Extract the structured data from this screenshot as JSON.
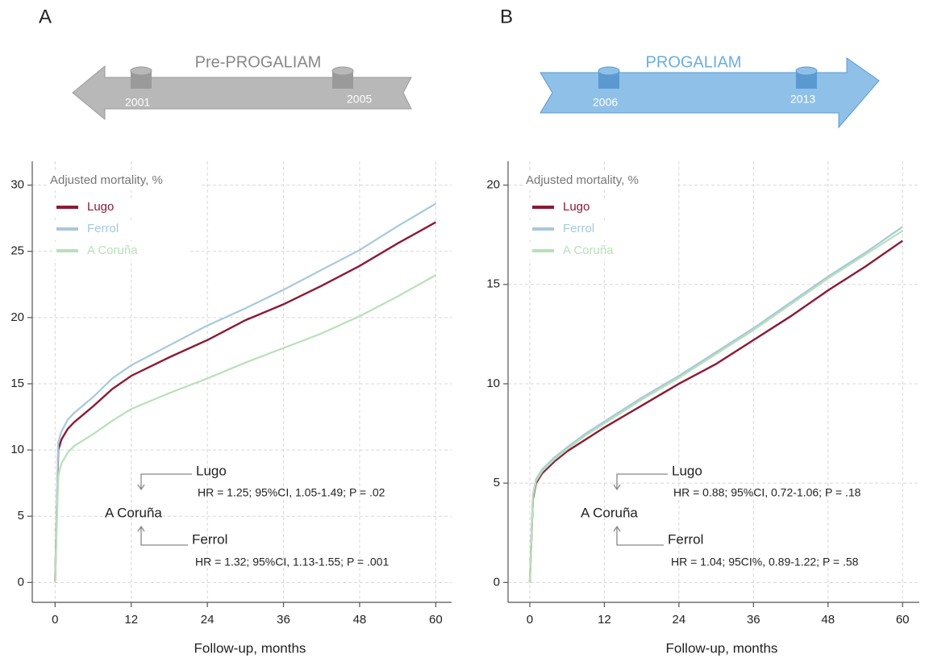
{
  "chart_data": [
    {
      "type": "line",
      "label": "A",
      "banner": {
        "title": "Pre-PROGALIAM",
        "start": "2001",
        "end": "2005"
      },
      "ylabel": "Adjusted mortality, %",
      "xlabel": "Follow-up, months",
      "x": [
        0,
        0.5,
        1,
        2,
        3,
        4,
        6,
        9,
        12,
        18,
        24,
        30,
        36,
        42,
        48,
        54,
        60
      ],
      "series": [
        {
          "name": "Lugo",
          "color": "#8b1a35",
          "values": [
            0,
            10.0,
            10.8,
            11.6,
            12.1,
            12.5,
            13.3,
            14.6,
            15.6,
            17.0,
            18.3,
            19.8,
            21.0,
            22.4,
            23.9,
            25.6,
            27.2
          ]
        },
        {
          "name": "Ferrol",
          "color": "#a8c8dc",
          "values": [
            0,
            10.6,
            11.4,
            12.3,
            12.8,
            13.2,
            14.0,
            15.4,
            16.4,
            17.9,
            19.4,
            20.7,
            22.1,
            23.6,
            25.1,
            26.9,
            28.6
          ]
        },
        {
          "name": "A Coruña",
          "color": "#b8e0b8",
          "values": [
            0,
            8.0,
            9.0,
            9.8,
            10.3,
            10.6,
            11.2,
            12.2,
            13.1,
            14.3,
            15.4,
            16.6,
            17.7,
            18.8,
            20.1,
            21.6,
            23.2
          ]
        }
      ],
      "annotations": [
        "Lugo",
        "HR = 1.25; 95%CI, 1.05-1.49; P = .02",
        "A Coruña",
        "Ferrol",
        "HR = 1.32; 95%CI, 1.13-1.55; P = .001"
      ],
      "xlim": [
        -3.6,
        62.5
      ],
      "xticks": [
        0,
        12,
        24,
        36,
        48,
        60
      ],
      "ylim": [
        -1.5,
        31.8
      ],
      "yticks": [
        0,
        5,
        10,
        15,
        20,
        25,
        30
      ],
      "grid": true
    },
    {
      "type": "line",
      "label": "B",
      "banner": {
        "title": "PROGALIAM",
        "start": "2006",
        "end": "2013"
      },
      "ylabel": "Adjusted mortality, %",
      "xlabel": "Follow-up, months",
      "x": [
        0,
        0.5,
        1,
        2,
        3,
        4,
        6,
        9,
        12,
        18,
        24,
        30,
        36,
        42,
        48,
        54,
        60
      ],
      "series": [
        {
          "name": "Lugo",
          "color": "#8b1a35",
          "values": [
            0,
            4.2,
            5.0,
            5.5,
            5.8,
            6.1,
            6.6,
            7.2,
            7.8,
            8.9,
            10.0,
            11.0,
            12.2,
            13.4,
            14.7,
            15.9,
            17.2
          ]
        },
        {
          "name": "Ferrol",
          "color": "#a8c8dc",
          "values": [
            0,
            4.4,
            5.2,
            5.7,
            6.0,
            6.3,
            6.8,
            7.5,
            8.1,
            9.3,
            10.4,
            11.6,
            12.8,
            14.1,
            15.4,
            16.6,
            17.9
          ]
        },
        {
          "name": "A Coruña",
          "color": "#b8e0b8",
          "values": [
            0,
            4.3,
            5.1,
            5.6,
            5.9,
            6.2,
            6.7,
            7.4,
            8.0,
            9.2,
            10.3,
            11.5,
            12.7,
            14.0,
            15.3,
            16.5,
            17.7
          ]
        }
      ],
      "annotations": [
        "Lugo",
        "HR = 0.88; 95%CI, 0.72-1.06; P = .18",
        "A Coruña",
        "Ferrol",
        "HR = 1.04; 95CI%, 0.89-1.22; P = .58"
      ],
      "xlim": [
        -3.5,
        62.7
      ],
      "xticks": [
        0,
        12,
        24,
        36,
        48,
        60
      ],
      "ylim": [
        -1,
        21.2
      ],
      "yticks": [
        0,
        5,
        10,
        15,
        20
      ],
      "grid": true
    }
  ]
}
